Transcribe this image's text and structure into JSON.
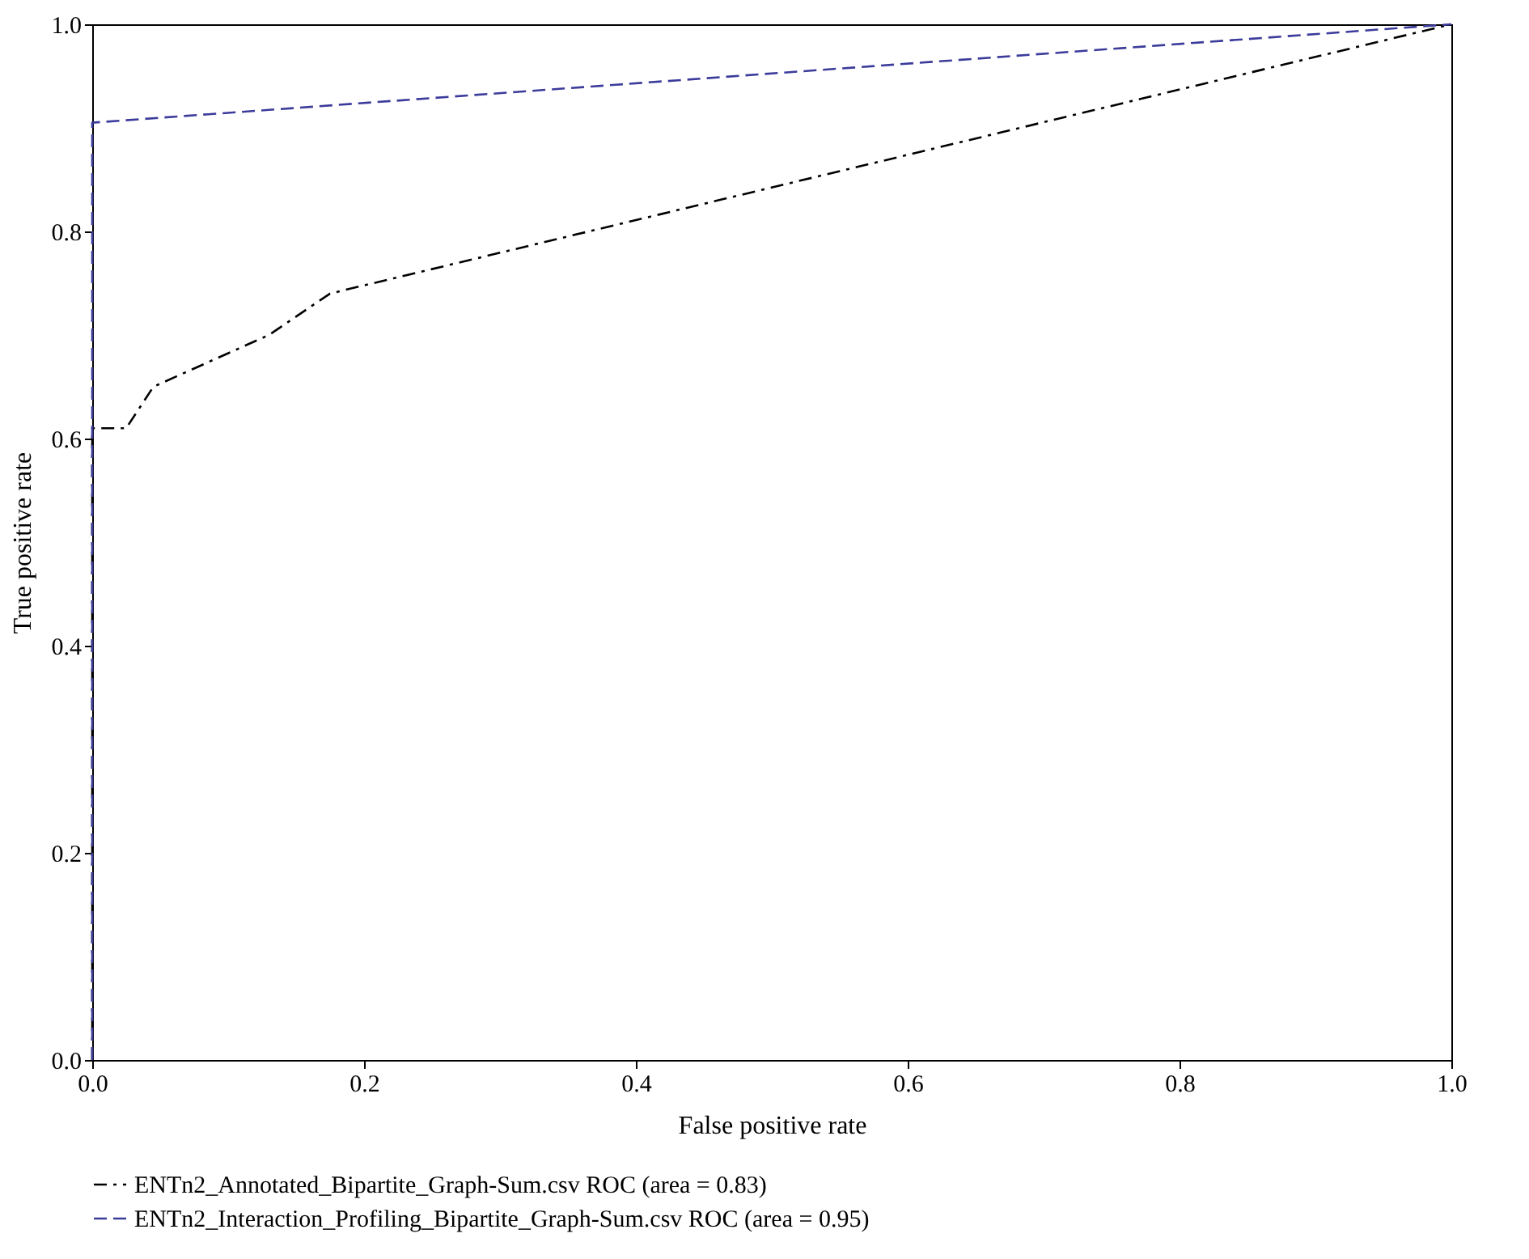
{
  "chart_data": {
    "type": "line",
    "xlabel": "False positive rate",
    "ylabel": "True positive rate",
    "xlim": [
      0,
      1
    ],
    "ylim": [
      0,
      1
    ],
    "xticks": [
      {
        "value": 0,
        "label": "0.0"
      },
      0.2,
      0.4,
      0.6,
      0.8,
      {
        "value": 1,
        "label": "1.0"
      }
    ],
    "yticks": [
      {
        "value": 0,
        "label": "0.0"
      },
      0.2,
      0.4,
      0.6,
      0.8,
      {
        "value": 1,
        "label": "1.0"
      }
    ],
    "grid": false,
    "legend": "bottom",
    "marker": "none",
    "series": [
      {
        "name": "ENTn2_Annotated_Bipartite_Graph-Sum.csv ROC (area = 0.83)",
        "color": "#000000",
        "line_style": "dashdot",
        "x": [
          0,
          0,
          0.025,
          0.045,
          0.13,
          0.175,
          1
        ],
        "values": [
          0,
          0.61,
          0.61,
          0.65,
          0.7,
          0.74,
          1
        ]
      },
      {
        "name": "ENTn2_Interaction_Profiling_Bipartite_Graph-Sum.csv ROC (area = 0.95)",
        "color": "#3b3b9b",
        "line_style": "dashed",
        "x": [
          0,
          0,
          1
        ],
        "values": [
          0,
          0.905,
          1
        ]
      }
    ]
  }
}
